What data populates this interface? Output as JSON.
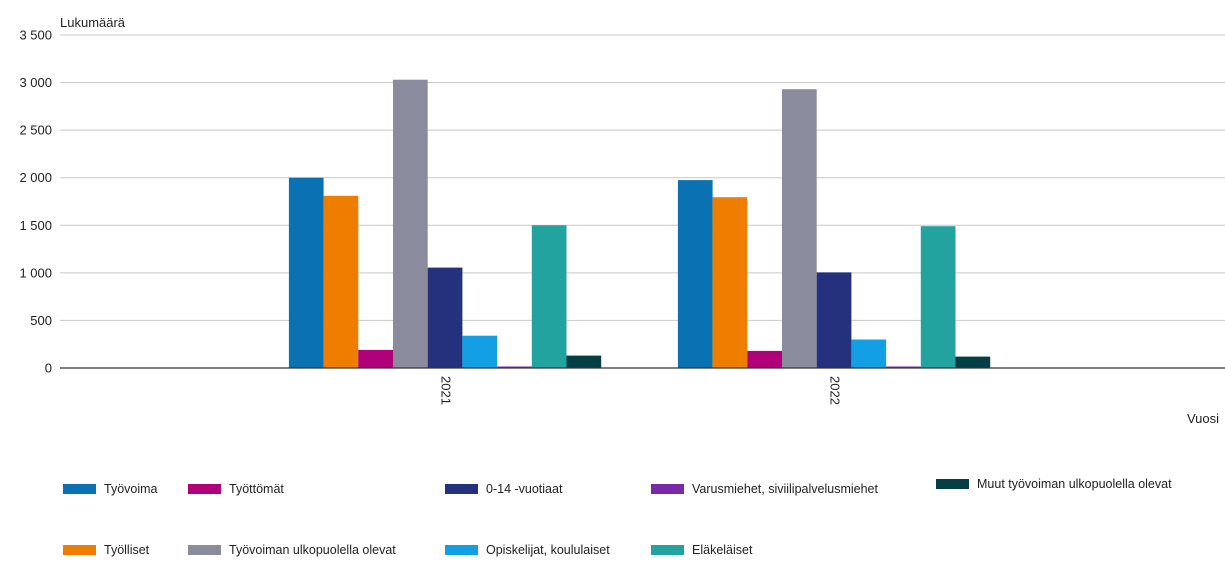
{
  "chart_data": {
    "type": "bar",
    "categories": [
      "2021",
      "2022"
    ],
    "xlabel": "Vuosi",
    "ylabel": "Lukumäärä",
    "ylim": [
      0,
      3500
    ],
    "yticks": [
      0,
      500,
      1000,
      1500,
      2000,
      2500,
      3000,
      3500
    ],
    "ytick_labels": [
      "0",
      "500",
      "1 000",
      "1 500",
      "2 000",
      "2 500",
      "3 000",
      "3 500"
    ],
    "grid": true,
    "legend_position": "bottom",
    "series": [
      {
        "name": "Työvoima",
        "color": "#0a72b3",
        "values": [
          2000,
          1975
        ]
      },
      {
        "name": "Työlliset",
        "color": "#ef7d00",
        "values": [
          1810,
          1795
        ]
      },
      {
        "name": "Työttömät",
        "color": "#b0017a",
        "values": [
          190,
          180
        ]
      },
      {
        "name": "Työvoiman ulkopuolella olevat",
        "color": "#8a8b9c",
        "values": [
          3030,
          2930
        ]
      },
      {
        "name": "0-14 -vuotiaat",
        "color": "#24317d",
        "values": [
          1055,
          1005
        ]
      },
      {
        "name": "Opiskelijat, koululaiset",
        "color": "#129fe3",
        "values": [
          340,
          300
        ]
      },
      {
        "name": "Varusmiehet, siviilipalvelusmiehet",
        "color": "#7a2aa8",
        "values": [
          15,
          15
        ]
      },
      {
        "name": "Eläkeläiset",
        "color": "#22a39f",
        "values": [
          1500,
          1490
        ]
      },
      {
        "name": "Muut työvoiman ulkopuolella olevat",
        "color": "#043f45",
        "values": [
          130,
          120
        ]
      }
    ]
  }
}
